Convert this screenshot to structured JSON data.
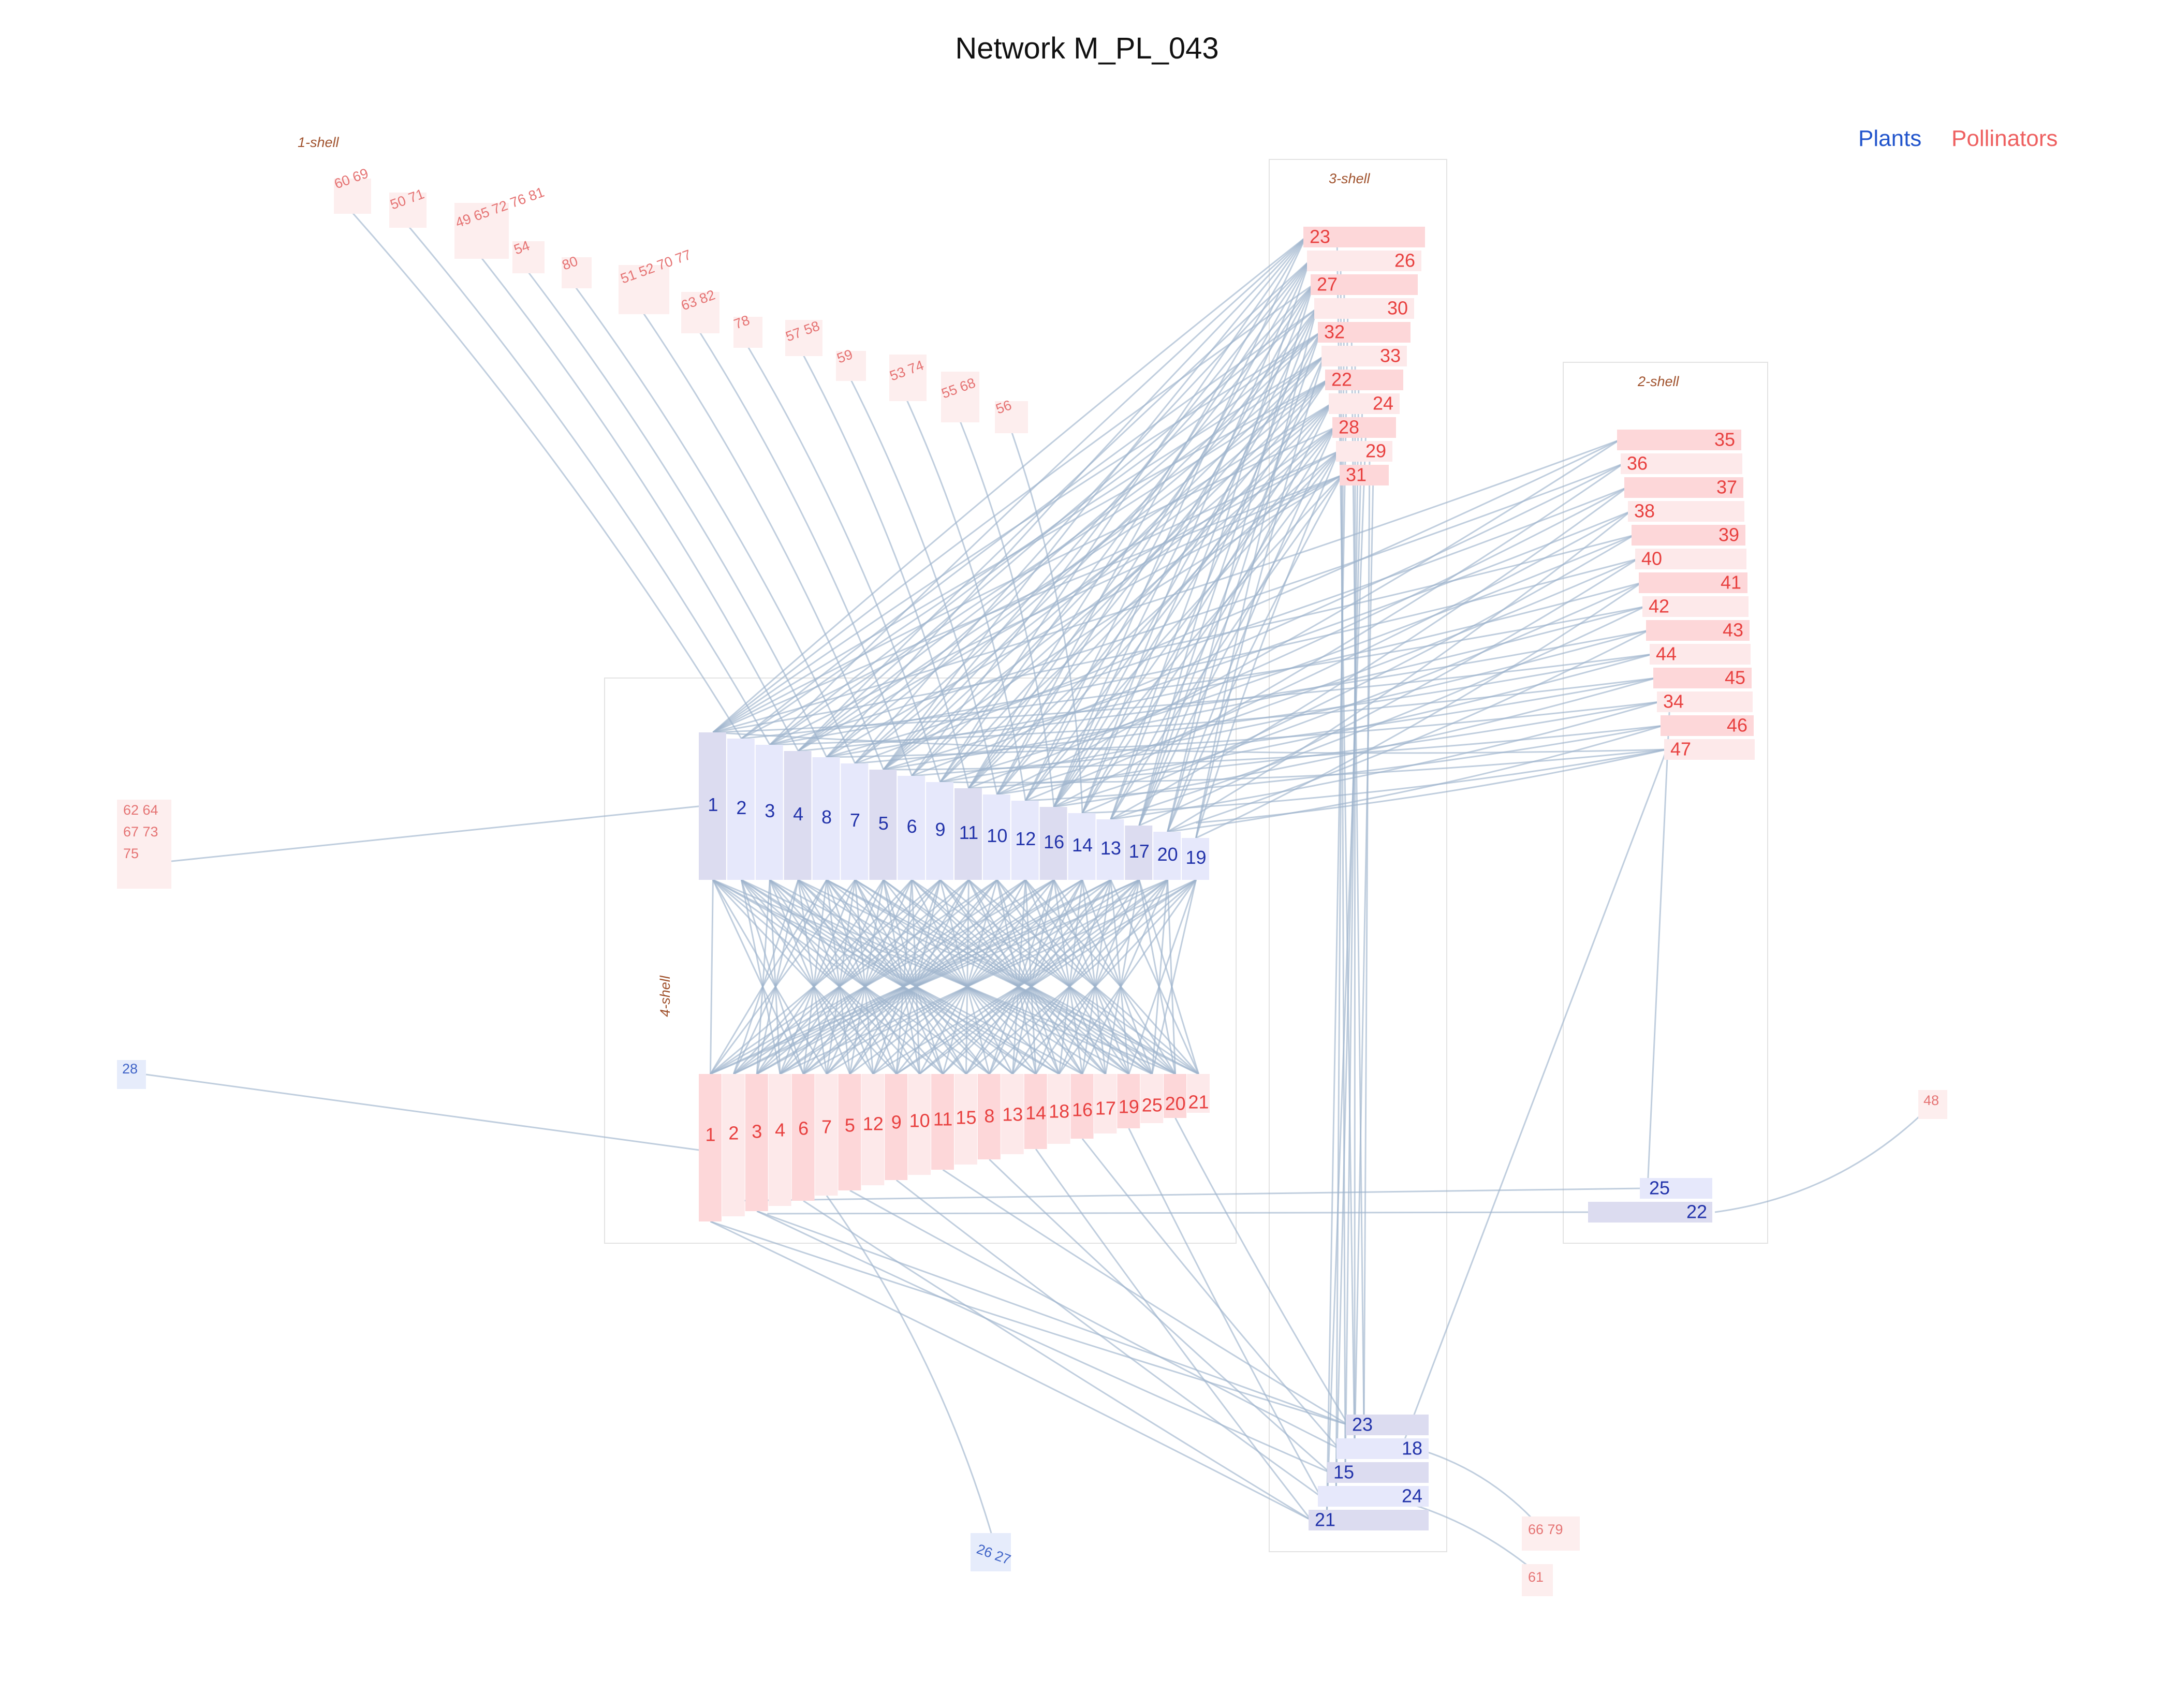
{
  "title": "Network M_PL_043",
  "legend": {
    "plants": "Plants",
    "pollinators": "Pollinators"
  },
  "colors": {
    "plant_text": "#2233aa",
    "pollinator_text": "#e8403f",
    "plant_fill": "#dcdcf0",
    "plant_fill_alt": "#e6e8fb",
    "pollinator_fill": "#fdd7d9",
    "pollinator_fill_alt": "#fde9ea",
    "peripheral_fill": "#fdeeee",
    "edge": "#9eb3cc"
  },
  "shells": {
    "shell1": "1-shell",
    "shell2": "2-shell",
    "shell3": "3-shell",
    "shell4": "4-shell"
  },
  "core": {
    "plants": [
      "1",
      "2",
      "3",
      "4",
      "8",
      "7",
      "5",
      "6",
      "9",
      "11",
      "10",
      "12",
      "16",
      "14",
      "13",
      "17",
      "20",
      "19"
    ],
    "pollinators": [
      "1",
      "2",
      "3",
      "4",
      "6",
      "7",
      "5",
      "12",
      "9",
      "10",
      "11",
      "15",
      "8",
      "13",
      "14",
      "18",
      "16",
      "17",
      "19",
      "25",
      "20",
      "21"
    ]
  },
  "shell3": {
    "pollinators": [
      "23",
      "26",
      "27",
      "30",
      "32",
      "33",
      "22",
      "24",
      "28",
      "29",
      "31"
    ],
    "plants": [
      "23",
      "18",
      "15",
      "24",
      "21"
    ]
  },
  "shell2": {
    "pollinators": [
      "35",
      "36",
      "37",
      "38",
      "39",
      "40",
      "41",
      "42",
      "43",
      "44",
      "45",
      "34",
      "46",
      "47"
    ],
    "plants": [
      "25",
      "22"
    ]
  },
  "shell1": {
    "pollinator_groups": [
      "60  69",
      "50  71",
      "49 65 72 76  81",
      "54",
      "80",
      "51 52  70 77",
      "63  82",
      "78",
      "57  58",
      "59",
      "53  74",
      "55  68",
      "56"
    ]
  },
  "outliers": {
    "left_pollinators": [
      "62 64",
      "67 73",
      "75"
    ],
    "left_plant": "28",
    "right_pollinator": "48",
    "bottom_plants": "26  27",
    "bottom_pollinators_a": "66  79",
    "bottom_pollinators_b": "61"
  }
}
